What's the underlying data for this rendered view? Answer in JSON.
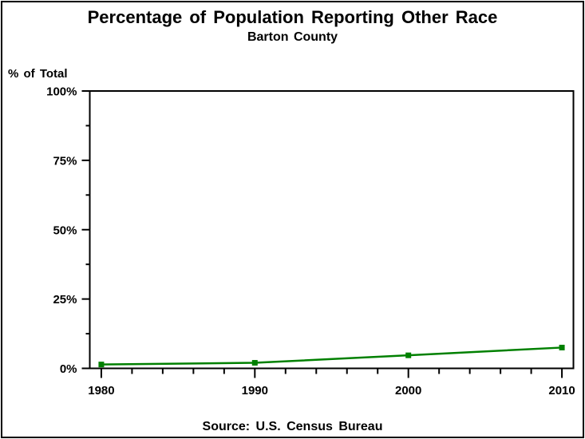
{
  "page": {
    "background_color": "#ffffff",
    "border_color": "#000000"
  },
  "chart": {
    "title": "Percentage of Population Reporting Other Race",
    "subtitle": "Barton County",
    "y_axis_title": "% of Total",
    "source_note": "Source: U.S. Census Bureau"
  },
  "chart_data": {
    "type": "line",
    "title": "Percentage of Population Reporting Other Race",
    "subtitle": "Barton County",
    "xlabel": "",
    "ylabel": "% of Total",
    "source": "Source: U.S. Census Bureau",
    "x": [
      1980,
      1990,
      2000,
      2010
    ],
    "values": [
      1.4,
      2.0,
      4.7,
      7.5
    ],
    "xlim": [
      1979.25,
      2010.75
    ],
    "ylim": [
      0,
      100
    ],
    "xticks": [
      1980,
      1990,
      2000,
      2010
    ],
    "xtick_labels": [
      "1980",
      "1990",
      "2000",
      "2010"
    ],
    "x_minor_tick_step": 2,
    "yticks": [
      0,
      25,
      50,
      75,
      100
    ],
    "ytick_labels": [
      "0%",
      "25%",
      "50%",
      "75%",
      "100%"
    ],
    "y_minor_tick_step": 12.5,
    "grid": false,
    "legend": "none",
    "frame": true,
    "line_color": "#008000",
    "marker": "square",
    "axis_color": "#000000"
  }
}
